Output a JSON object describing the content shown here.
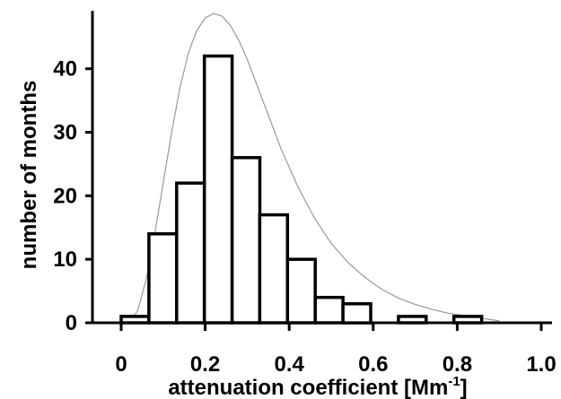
{
  "chart_data": {
    "type": "bar",
    "title": "",
    "xlabel": "attenuation coefficient [Mm",
    "xlabel_superscript": "-1",
    "xlabel_suffix": "]",
    "ylabel": "number of months",
    "xlim": [
      0,
      1.0
    ],
    "ylim": [
      0,
      48
    ],
    "x_ticks": [
      "0",
      "0.2",
      "0.4",
      "0.6",
      "0.8",
      "1.0"
    ],
    "x_tick_values": [
      0,
      0.2,
      0.4,
      0.6,
      0.8,
      1.0
    ],
    "y_ticks": [
      "0",
      "10",
      "20",
      "30",
      "40"
    ],
    "y_tick_values": [
      0,
      10,
      20,
      30,
      40
    ],
    "grid": false,
    "legend": "none",
    "bin_width": 0.066,
    "bins": [
      {
        "x0": 0.0,
        "x1": 0.066,
        "value": 1
      },
      {
        "x0": 0.066,
        "x1": 0.132,
        "value": 14
      },
      {
        "x0": 0.132,
        "x1": 0.198,
        "value": 22
      },
      {
        "x0": 0.198,
        "x1": 0.264,
        "value": 42
      },
      {
        "x0": 0.264,
        "x1": 0.33,
        "value": 26
      },
      {
        "x0": 0.33,
        "x1": 0.396,
        "value": 17
      },
      {
        "x0": 0.396,
        "x1": 0.462,
        "value": 10
      },
      {
        "x0": 0.462,
        "x1": 0.528,
        "value": 4
      },
      {
        "x0": 0.528,
        "x1": 0.594,
        "value": 3
      },
      {
        "x0": 0.66,
        "x1": 0.726,
        "value": 1
      },
      {
        "x0": 0.792,
        "x1": 0.858,
        "value": 1
      }
    ],
    "fit_curve": {
      "type": "lognormal-fit",
      "color": "#999999",
      "points": [
        [
          0.02,
          0
        ],
        [
          0.04,
          2
        ],
        [
          0.06,
          7
        ],
        [
          0.08,
          14
        ],
        [
          0.1,
          22
        ],
        [
          0.12,
          30
        ],
        [
          0.14,
          37
        ],
        [
          0.16,
          42.5
        ],
        [
          0.18,
          46
        ],
        [
          0.2,
          48
        ],
        [
          0.22,
          48.7
        ],
        [
          0.24,
          48.3
        ],
        [
          0.26,
          46.8
        ],
        [
          0.28,
          44.5
        ],
        [
          0.3,
          41.5
        ],
        [
          0.32,
          38
        ],
        [
          0.34,
          34.5
        ],
        [
          0.36,
          31
        ],
        [
          0.38,
          27.5
        ],
        [
          0.4,
          24.5
        ],
        [
          0.42,
          21.5
        ],
        [
          0.44,
          19
        ],
        [
          0.46,
          16.5
        ],
        [
          0.48,
          14.5
        ],
        [
          0.5,
          12.5
        ],
        [
          0.52,
          11
        ],
        [
          0.54,
          9.5
        ],
        [
          0.56,
          8.3
        ],
        [
          0.58,
          7.2
        ],
        [
          0.6,
          6.2
        ],
        [
          0.62,
          5.3
        ],
        [
          0.64,
          4.6
        ],
        [
          0.66,
          3.9
        ],
        [
          0.68,
          3.4
        ],
        [
          0.7,
          2.9
        ],
        [
          0.72,
          2.5
        ],
        [
          0.74,
          2.1
        ],
        [
          0.76,
          1.8
        ],
        [
          0.78,
          1.5
        ],
        [
          0.8,
          1.3
        ],
        [
          0.82,
          1.1
        ],
        [
          0.84,
          0.9
        ],
        [
          0.86,
          0.7
        ],
        [
          0.88,
          0.5
        ],
        [
          0.9,
          0.3
        ]
      ]
    },
    "bar_fill": "#ffffff",
    "bar_stroke": "#000000"
  }
}
